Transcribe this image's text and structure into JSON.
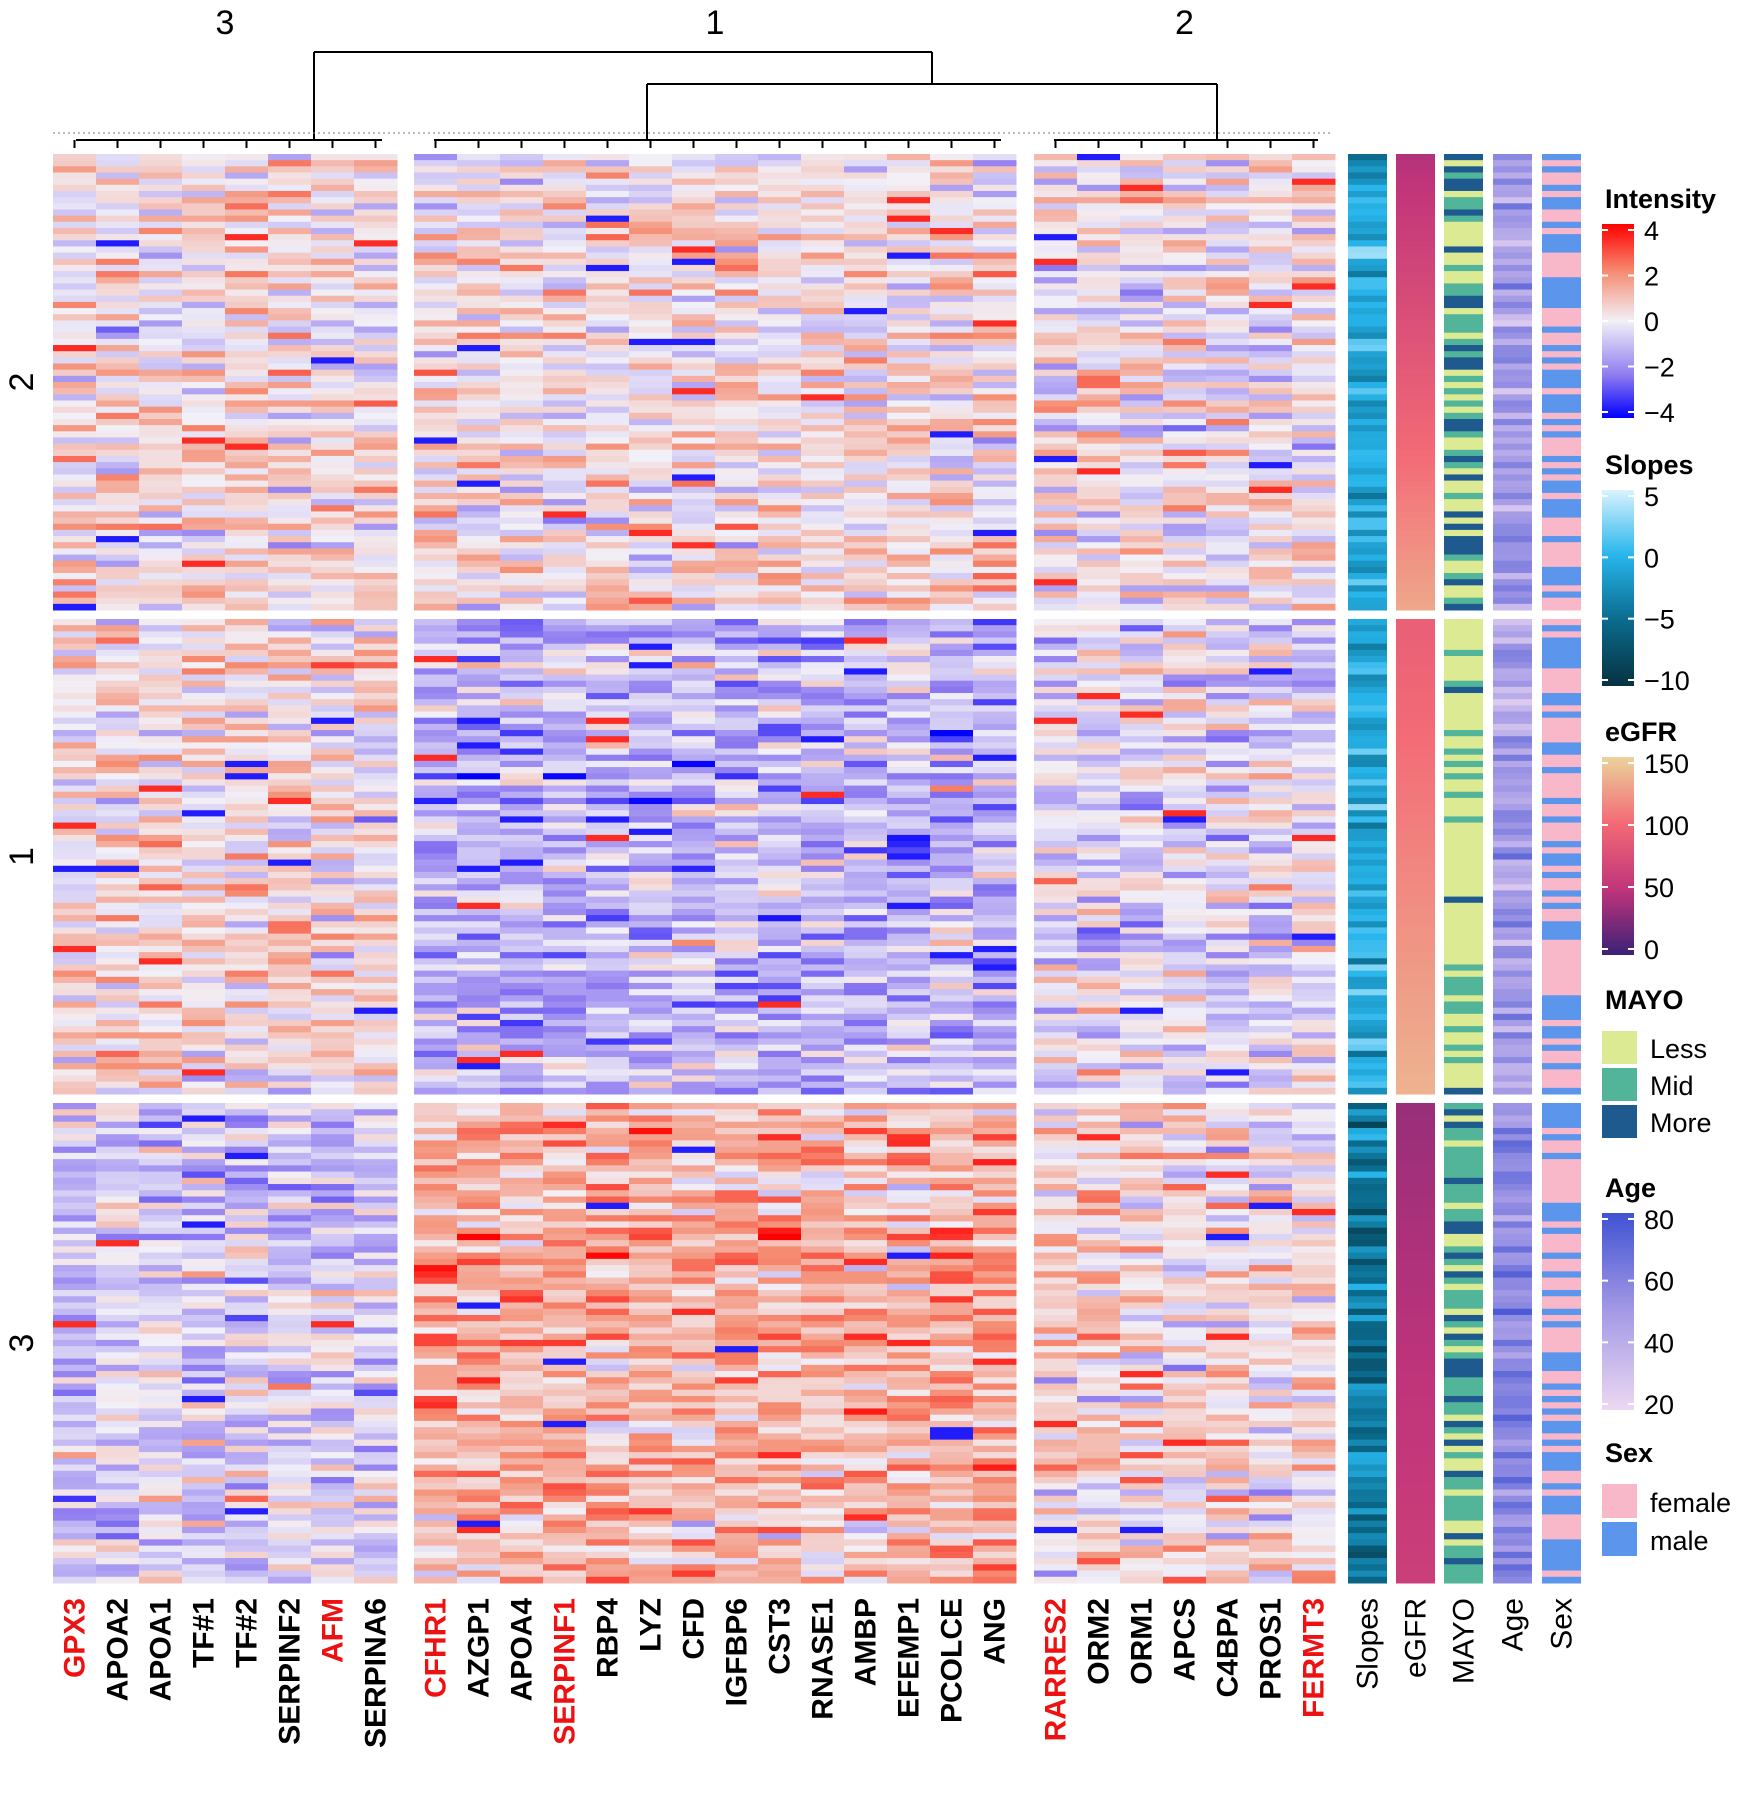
{
  "chart_data": {
    "type": "heatmap",
    "title": "",
    "column_cluster_labels": [
      "3",
      "1",
      "2"
    ],
    "row_cluster_labels": [
      "2",
      "1",
      "3"
    ],
    "row_group_sizes": [
      74,
      77,
      77
    ],
    "column_groups": [
      {
        "cluster": "3",
        "genes": [
          {
            "name": "GPX3",
            "highlight": true
          },
          {
            "name": "APOA2",
            "highlight": false
          },
          {
            "name": "APOA1",
            "highlight": false
          },
          {
            "name": "TF#1",
            "highlight": false
          },
          {
            "name": "TF#2",
            "highlight": false
          },
          {
            "name": "SERPINF2",
            "highlight": false
          },
          {
            "name": "AFM",
            "highlight": true
          },
          {
            "name": "SERPINA6",
            "highlight": false
          }
        ]
      },
      {
        "cluster": "1",
        "genes": [
          {
            "name": "CFHR1",
            "highlight": true
          },
          {
            "name": "AZGP1",
            "highlight": false
          },
          {
            "name": "APOA4",
            "highlight": false
          },
          {
            "name": "SERPINF1",
            "highlight": true
          },
          {
            "name": "RBP4",
            "highlight": false
          },
          {
            "name": "LYZ",
            "highlight": false
          },
          {
            "name": "CFD",
            "highlight": false
          },
          {
            "name": "IGFBP6",
            "highlight": false
          },
          {
            "name": "CST3",
            "highlight": false
          },
          {
            "name": "RNASE1",
            "highlight": false
          },
          {
            "name": "AMBP",
            "highlight": false
          },
          {
            "name": "EFEMP1",
            "highlight": false
          },
          {
            "name": "PCOLCE",
            "highlight": false
          },
          {
            "name": "ANG",
            "highlight": false
          }
        ]
      },
      {
        "cluster": "2",
        "genes": [
          {
            "name": "RARRES2",
            "highlight": true
          },
          {
            "name": "ORM2",
            "highlight": false
          },
          {
            "name": "ORM1",
            "highlight": false
          },
          {
            "name": "APCS",
            "highlight": false
          },
          {
            "name": "C4BPA",
            "highlight": false
          },
          {
            "name": "PROS1",
            "highlight": false
          },
          {
            "name": "FERMT3",
            "highlight": true
          }
        ]
      }
    ],
    "mean_intensity_by_row_cluster": [
      [
        0.3,
        0.3,
        0.0
      ],
      [
        0.3,
        -1.1,
        -0.3
      ],
      [
        -0.6,
        1.3,
        0.5
      ]
    ],
    "annotation_tracks": [
      "Slopes",
      "eGFR",
      "MAYO",
      "Age",
      "Sex"
    ],
    "legends": {
      "intensity": {
        "title": "Intensity",
        "ticks": [
          "4",
          "2",
          "0",
          "−2",
          "−4"
        ],
        "range": [
          -4,
          4
        ]
      },
      "slopes": {
        "title": "Slopes",
        "ticks": [
          "5",
          "0",
          "−5",
          "−10"
        ],
        "range": [
          -10,
          5
        ]
      },
      "egfr": {
        "title": "eGFR",
        "ticks": [
          "150",
          "100",
          "50",
          "0"
        ],
        "range": [
          0,
          150
        ]
      },
      "mayo": {
        "title": "MAYO",
        "levels": [
          "Less",
          "Mid",
          "More"
        ]
      },
      "age": {
        "title": "Age",
        "ticks": [
          "80",
          "60",
          "40",
          "20"
        ],
        "range": [
          20,
          80
        ]
      },
      "sex": {
        "title": "Sex",
        "levels": [
          "female",
          "male"
        ]
      }
    },
    "colors": {
      "intensity_high": "#ff0000",
      "intensity_mid": "#f2f0f7",
      "intensity_low": "#0000ff",
      "highlight_label": "#ee1111",
      "mayo_less": "#dcea93",
      "mayo_mid": "#52b59a",
      "mayo_more": "#1e5a8e",
      "sex_female": "#f9b8ca",
      "sex_male": "#5b95ec"
    }
  }
}
